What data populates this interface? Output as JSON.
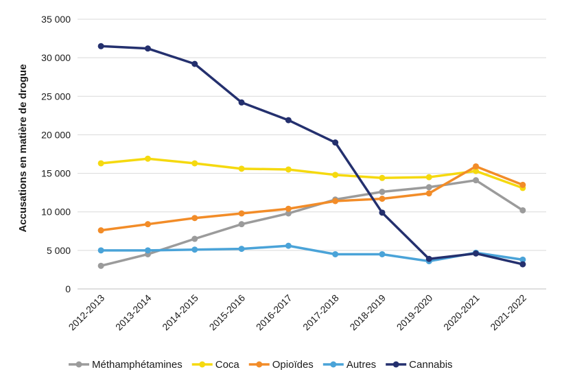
{
  "chart_data": {
    "type": "line",
    "title": "",
    "xlabel": "",
    "ylabel": "Accusations en matière de drogue",
    "ylim": [
      0,
      35000
    ],
    "yticks": [
      0,
      5000,
      10000,
      15000,
      20000,
      25000,
      30000,
      35000
    ],
    "ytick_labels": [
      "0",
      "5 000",
      "10 000",
      "15 000",
      "20 000",
      "25 000",
      "30 000",
      "35 000"
    ],
    "grid": true,
    "legend_position": "bottom",
    "categories": [
      "2012-2013",
      "2013-2014",
      "2014-2015",
      "2015-2016",
      "2016-2017",
      "2017-2018",
      "2018-2019",
      "2019-2020",
      "2020-2021",
      "2021-2022"
    ],
    "series": [
      {
        "name": "Méthamphétamines",
        "color": "#9b9b9b",
        "values": [
          3000,
          4500,
          6500,
          8400,
          9800,
          11600,
          12600,
          13200,
          14100,
          10200
        ]
      },
      {
        "name": "Coca",
        "color": "#f5d90f",
        "values": [
          16300,
          16900,
          16300,
          15600,
          15500,
          14800,
          14400,
          14500,
          15300,
          13100
        ]
      },
      {
        "name": "Opioïdes",
        "color": "#f28c28",
        "values": [
          7600,
          8400,
          9200,
          9800,
          10400,
          11400,
          11700,
          12400,
          15900,
          13500
        ]
      },
      {
        "name": "Autres",
        "color": "#4aa3d8",
        "values": [
          5000,
          5000,
          5100,
          5200,
          5600,
          4500,
          4500,
          3600,
          4700,
          3800
        ]
      },
      {
        "name": "Cannabis",
        "color": "#24306e",
        "values": [
          31500,
          31200,
          29200,
          24200,
          21900,
          19000,
          9900,
          3900,
          4600,
          3200
        ]
      }
    ]
  }
}
